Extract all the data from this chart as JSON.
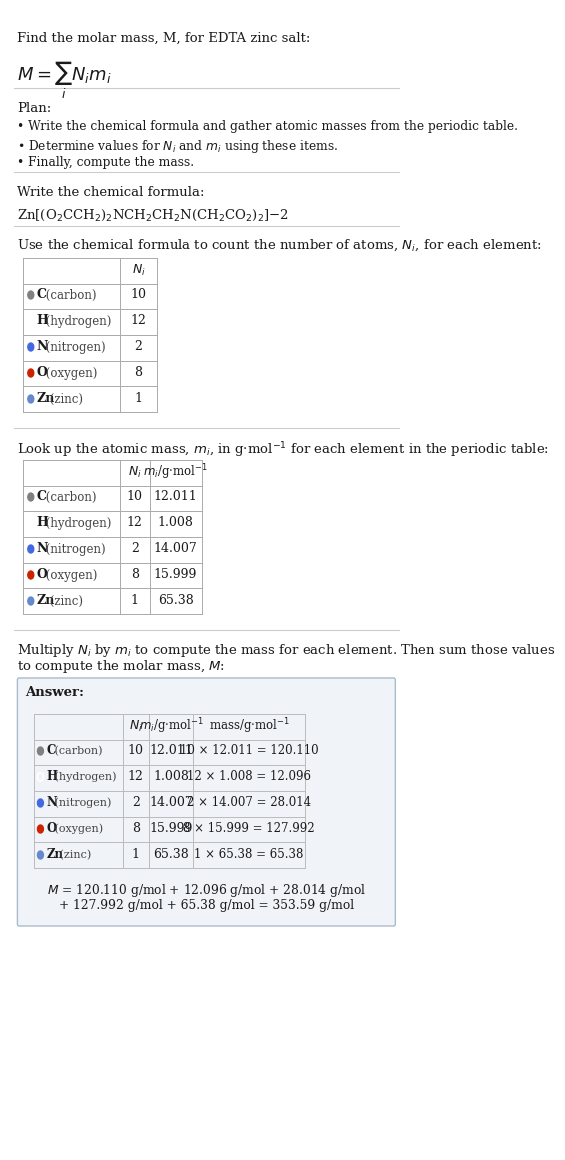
{
  "title_line1": "Find the molar mass, M, for EDTA zinc salt:",
  "title_formula": "$M = \\sum_i N_i m_i$",
  "bg_color": "#ffffff",
  "text_color": "#1a1a1a",
  "plan_header": "Plan:",
  "plan_bullets": [
    "• Write the chemical formula and gather atomic masses from the periodic table.",
    "• Determine values for $N_i$ and $m_i$ using these items.",
    "• Finally, compute the mass."
  ],
  "formula_header": "Write the chemical formula:",
  "chemical_formula": "Zn[(O$_2$CCH$_2$)$_2$NCH$_2$CH$_2$N(CH$_2$CO$_2$)$_2$]−2",
  "table1_header": "Use the chemical formula to count the number of atoms, $N_i$, for each element:",
  "table2_header": "Look up the atomic mass, $m_i$, in g·mol$^{-1}$ for each element in the periodic table:",
  "table3_header": "Multiply $N_i$ by $m_i$ to compute the mass for each element. Then sum those values\nto compute the molar mass, $M$:",
  "elements": [
    "C (carbon)",
    "H (hydrogen)",
    "N (nitrogen)",
    "O (oxygen)",
    "Zn (zinc)"
  ],
  "dot_colors": [
    "#808080",
    "#ffffff",
    "#4169e1",
    "#cc2200",
    "#6688cc"
  ],
  "dot_outline": [
    false,
    true,
    false,
    false,
    false
  ],
  "Ni": [
    10,
    12,
    2,
    8,
    1
  ],
  "mi": [
    "12.011",
    "1.008",
    "14.007",
    "15.999",
    "65.38"
  ],
  "mass_expr": [
    "10 × 12.011 = 120.110",
    "12 × 1.008 = 12.096",
    "2 × 14.007 = 28.014",
    "8 × 15.999 = 127.992",
    "1 × 65.38 = 65.38"
  ],
  "answer_box_color": "#f0f4f8",
  "answer_box_border": "#aabbcc",
  "final_answer_line1": "$M$ = 120.110 g/mol + 12.096 g/mol + 28.014 g/mol",
  "final_answer_line2": "+ 127.992 g/mol + 65.38 g/mol = 353.59 g/mol",
  "separator_color": "#cccccc",
  "table_border_color": "#aaaaaa",
  "table_bg": "#ffffff"
}
